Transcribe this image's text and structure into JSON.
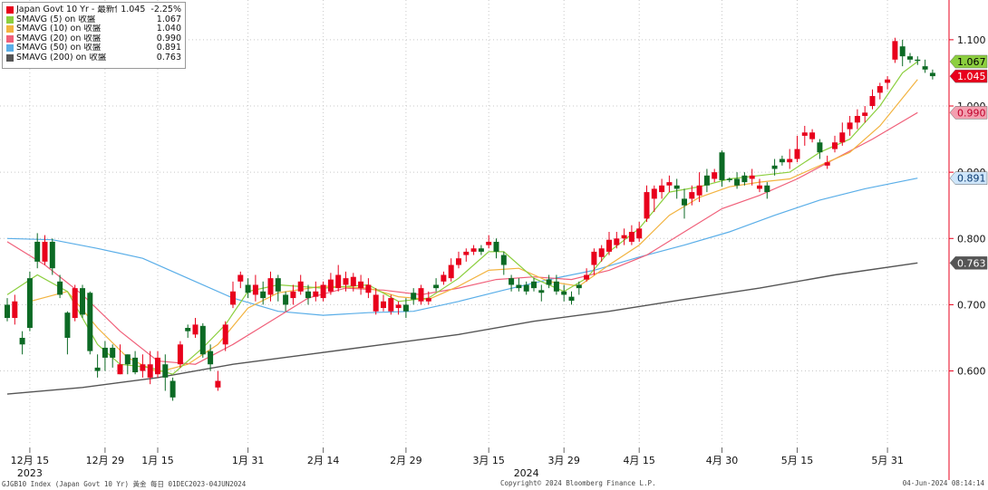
{
  "chart_data": {
    "type": "candlestick",
    "instrument": "Japan Govt 10 Yr",
    "legend": [
      {
        "label": "Japan Govt 10 Yr - 最新價",
        "value": "1.045",
        "change": "-2.25%",
        "color": "#e8001c"
      },
      {
        "label": "SMAVG (5)  on 收盤",
        "value": "1.067",
        "color": "#8ccf3f"
      },
      {
        "label": "SMAVG (10)  on 收盤",
        "value": "1.040",
        "color": "#f2b340"
      },
      {
        "label": "SMAVG (20)  on 收盤",
        "value": "0.990",
        "color": "#f0607a"
      },
      {
        "label": "SMAVG (50)  on 收盤",
        "value": "0.891",
        "color": "#5aaee8"
      },
      {
        "label": "SMAVG (200)  on 收盤",
        "value": "0.763",
        "color": "#555555"
      }
    ],
    "y_axis": {
      "min": 0.49,
      "max": 1.16,
      "ticks": [
        "0.600",
        "0.700",
        "0.800",
        "0.900",
        "1.000",
        "1.100"
      ],
      "position": "right"
    },
    "x_ticks": [
      {
        "label": "12月 15",
        "i": 3
      },
      {
        "label": "12月 29",
        "i": 13
      },
      {
        "label": "1月 15",
        "i": 20
      },
      {
        "label": "1月 31",
        "i": 32
      },
      {
        "label": "2月 14",
        "i": 42
      },
      {
        "label": "2月 29",
        "i": 53
      },
      {
        "label": "3月 15",
        "i": 64
      },
      {
        "label": "3月 29",
        "i": 74
      },
      {
        "label": "4月 15",
        "i": 84
      },
      {
        "label": "4月 30",
        "i": 95
      },
      {
        "label": "5月 15",
        "i": 105
      },
      {
        "label": "5月 31",
        "i": 117
      }
    ],
    "year_labels": [
      {
        "label": "2023",
        "i": 3
      },
      {
        "label": "2024",
        "i": 69
      }
    ],
    "candles": [
      [
        0.7,
        0.68,
        0.71,
        0.675
      ],
      [
        0.68,
        0.705,
        0.715,
        0.67
      ],
      [
        0.65,
        0.64,
        0.66,
        0.625
      ],
      [
        0.74,
        0.665,
        0.75,
        0.66
      ],
      [
        0.795,
        0.765,
        0.808,
        0.755
      ],
      [
        0.765,
        0.795,
        0.805,
        0.76
      ],
      [
        0.795,
        0.755,
        0.8,
        0.745
      ],
      [
        0.735,
        0.715,
        0.745,
        0.71
      ],
      [
        0.688,
        0.65,
        0.69,
        0.625
      ],
      [
        0.68,
        0.725,
        0.73,
        0.675
      ],
      [
        0.725,
        0.685,
        0.73,
        0.68
      ],
      [
        0.718,
        0.63,
        0.72,
        0.625
      ],
      [
        0.605,
        0.6,
        0.625,
        0.59
      ],
      [
        0.635,
        0.62,
        0.645,
        0.6
      ],
      [
        0.635,
        0.62,
        0.64,
        0.605
      ],
      [
        0.595,
        0.61,
        0.64,
        0.595
      ],
      [
        0.625,
        0.61,
        0.625,
        0.595
      ],
      [
        0.62,
        0.598,
        0.63,
        0.595
      ],
      [
        0.6,
        0.61,
        0.625,
        0.59
      ],
      [
        0.59,
        0.61,
        0.63,
        0.58
      ],
      [
        0.595,
        0.62,
        0.63,
        0.59
      ],
      [
        0.61,
        0.59,
        0.625,
        0.57
      ],
      [
        0.585,
        0.56,
        0.59,
        0.555
      ],
      [
        0.61,
        0.64,
        0.645,
        0.605
      ],
      [
        0.665,
        0.66,
        0.67,
        0.65
      ],
      [
        0.655,
        0.67,
        0.68,
        0.65
      ],
      [
        0.668,
        0.625,
        0.672,
        0.62
      ],
      [
        0.63,
        0.61,
        0.64,
        0.6
      ],
      [
        0.575,
        0.585,
        0.6,
        0.57
      ],
      [
        0.64,
        0.67,
        0.675,
        0.63
      ],
      [
        0.7,
        0.72,
        0.735,
        0.695
      ],
      [
        0.735,
        0.745,
        0.75,
        0.725
      ],
      [
        0.73,
        0.718,
        0.74,
        0.71
      ],
      [
        0.715,
        0.73,
        0.745,
        0.705
      ],
      [
        0.72,
        0.71,
        0.735,
        0.7
      ],
      [
        0.715,
        0.74,
        0.75,
        0.705
      ],
      [
        0.74,
        0.72,
        0.745,
        0.705
      ],
      [
        0.715,
        0.7,
        0.72,
        0.69
      ],
      [
        0.71,
        0.72,
        0.73,
        0.7
      ],
      [
        0.72,
        0.735,
        0.745,
        0.715
      ],
      [
        0.72,
        0.71,
        0.73,
        0.7
      ],
      [
        0.712,
        0.72,
        0.735,
        0.705
      ],
      [
        0.71,
        0.73,
        0.735,
        0.705
      ],
      [
        0.72,
        0.738,
        0.748,
        0.715
      ],
      [
        0.725,
        0.745,
        0.76,
        0.72
      ],
      [
        0.73,
        0.74,
        0.75,
        0.72
      ],
      [
        0.728,
        0.742,
        0.748,
        0.72
      ],
      [
        0.725,
        0.735,
        0.745,
        0.715
      ],
      [
        0.718,
        0.73,
        0.74,
        0.71
      ],
      [
        0.69,
        0.715,
        0.725,
        0.685
      ],
      [
        0.695,
        0.705,
        0.715,
        0.69
      ],
      [
        0.69,
        0.71,
        0.715,
        0.685
      ],
      [
        0.695,
        0.7,
        0.705,
        0.685
      ],
      [
        0.7,
        0.69,
        0.71,
        0.68
      ],
      [
        0.718,
        0.708,
        0.725,
        0.7
      ],
      [
        0.705,
        0.725,
        0.73,
        0.7
      ],
      [
        0.705,
        0.71,
        0.72,
        0.7
      ],
      [
        0.73,
        0.725,
        0.74,
        0.72
      ],
      [
        0.735,
        0.745,
        0.75,
        0.73
      ],
      [
        0.74,
        0.76,
        0.77,
        0.735
      ],
      [
        0.76,
        0.77,
        0.78,
        0.755
      ],
      [
        0.775,
        0.78,
        0.785,
        0.765
      ],
      [
        0.78,
        0.785,
        0.79,
        0.775
      ],
      [
        0.785,
        0.78,
        0.79,
        0.775
      ],
      [
        0.79,
        0.795,
        0.805,
        0.785
      ],
      [
        0.795,
        0.78,
        0.8,
        0.77
      ],
      [
        0.775,
        0.76,
        0.78,
        0.745
      ],
      [
        0.74,
        0.73,
        0.745,
        0.72
      ],
      [
        0.73,
        0.725,
        0.74,
        0.72
      ],
      [
        0.73,
        0.72,
        0.735,
        0.715
      ],
      [
        0.735,
        0.725,
        0.74,
        0.72
      ],
      [
        0.722,
        0.718,
        0.73,
        0.705
      ],
      [
        0.738,
        0.73,
        0.745,
        0.725
      ],
      [
        0.735,
        0.72,
        0.745,
        0.715
      ],
      [
        0.72,
        0.715,
        0.73,
        0.705
      ],
      [
        0.712,
        0.706,
        0.72,
        0.7
      ],
      [
        0.73,
        0.725,
        0.735,
        0.715
      ],
      [
        0.738,
        0.745,
        0.755,
        0.735
      ],
      [
        0.76,
        0.78,
        0.785,
        0.745
      ],
      [
        0.772,
        0.785,
        0.79,
        0.765
      ],
      [
        0.78,
        0.798,
        0.81,
        0.775
      ],
      [
        0.79,
        0.8,
        0.81,
        0.785
      ],
      [
        0.8,
        0.805,
        0.815,
        0.79
      ],
      [
        0.795,
        0.81,
        0.82,
        0.79
      ],
      [
        0.8,
        0.815,
        0.825,
        0.795
      ],
      [
        0.83,
        0.87,
        0.88,
        0.825
      ],
      [
        0.86,
        0.875,
        0.88,
        0.84
      ],
      [
        0.87,
        0.88,
        0.89,
        0.86
      ],
      [
        0.88,
        0.885,
        0.895,
        0.87
      ],
      [
        0.88,
        0.875,
        0.89,
        0.86
      ],
      [
        0.86,
        0.85,
        0.875,
        0.83
      ],
      [
        0.86,
        0.87,
        0.88,
        0.85
      ],
      [
        0.865,
        0.88,
        0.9,
        0.855
      ],
      [
        0.895,
        0.88,
        0.905,
        0.87
      ],
      [
        0.89,
        0.9,
        0.905,
        0.885
      ],
      [
        0.93,
        0.888,
        0.933,
        0.878
      ],
      [
        0.89,
        0.888,
        0.892,
        0.885
      ],
      [
        0.89,
        0.88,
        0.9,
        0.875
      ],
      [
        0.895,
        0.885,
        0.9,
        0.88
      ],
      [
        0.89,
        0.895,
        0.905,
        0.88
      ],
      [
        0.875,
        0.88,
        0.89,
        0.87
      ],
      [
        0.88,
        0.87,
        0.885,
        0.86
      ],
      [
        0.91,
        0.905,
        0.92,
        0.895
      ],
      [
        0.92,
        0.915,
        0.925,
        0.91
      ],
      [
        0.915,
        0.92,
        0.935,
        0.905
      ],
      [
        0.92,
        0.935,
        0.955,
        0.915
      ],
      [
        0.955,
        0.96,
        0.97,
        0.94
      ],
      [
        0.95,
        0.96,
        0.965,
        0.945
      ],
      [
        0.945,
        0.93,
        0.95,
        0.92
      ],
      [
        0.91,
        0.915,
        0.925,
        0.905
      ],
      [
        0.935,
        0.945,
        0.955,
        0.93
      ],
      [
        0.945,
        0.96,
        0.975,
        0.94
      ],
      [
        0.965,
        0.975,
        0.985,
        0.955
      ],
      [
        0.975,
        0.985,
        0.995,
        0.965
      ],
      [
        0.985,
        0.99,
        1.0,
        0.975
      ],
      [
        1.0,
        1.015,
        1.025,
        0.995
      ],
      [
        1.02,
        1.03,
        1.035,
        1.01
      ],
      [
        1.035,
        1.04,
        1.045,
        1.025
      ],
      [
        1.07,
        1.098,
        1.103,
        1.065
      ],
      [
        1.09,
        1.075,
        1.1,
        1.06
      ],
      [
        1.075,
        1.07,
        1.08,
        1.065
      ],
      [
        1.07,
        1.068,
        1.075,
        1.062
      ],
      [
        1.06,
        1.055,
        1.07,
        1.05
      ],
      [
        1.05,
        1.045,
        1.055,
        1.04
      ]
    ],
    "sma": {
      "s5": [
        [
          0,
          0.715
        ],
        [
          4,
          0.745
        ],
        [
          8,
          0.72
        ],
        [
          12,
          0.64
        ],
        [
          15,
          0.61
        ],
        [
          19,
          0.605
        ],
        [
          22,
          0.595
        ],
        [
          26,
          0.635
        ],
        [
          29,
          0.67
        ],
        [
          32,
          0.72
        ],
        [
          36,
          0.73
        ],
        [
          42,
          0.725
        ],
        [
          48,
          0.73
        ],
        [
          52,
          0.705
        ],
        [
          56,
          0.71
        ],
        [
          60,
          0.74
        ],
        [
          64,
          0.78
        ],
        [
          66,
          0.78
        ],
        [
          70,
          0.74
        ],
        [
          74,
          0.72
        ],
        [
          77,
          0.74
        ],
        [
          80,
          0.78
        ],
        [
          84,
          0.815
        ],
        [
          88,
          0.87
        ],
        [
          92,
          0.878
        ],
        [
          96,
          0.89
        ],
        [
          100,
          0.895
        ],
        [
          104,
          0.9
        ],
        [
          108,
          0.93
        ],
        [
          112,
          0.95
        ],
        [
          116,
          1.0
        ],
        [
          119,
          1.05
        ],
        [
          121,
          1.067
        ]
      ],
      "s10": [
        [
          3,
          0.705
        ],
        [
          8,
          0.72
        ],
        [
          12,
          0.665
        ],
        [
          16,
          0.62
        ],
        [
          20,
          0.598
        ],
        [
          24,
          0.61
        ],
        [
          28,
          0.64
        ],
        [
          32,
          0.695
        ],
        [
          36,
          0.718
        ],
        [
          42,
          0.728
        ],
        [
          48,
          0.725
        ],
        [
          52,
          0.712
        ],
        [
          56,
          0.708
        ],
        [
          60,
          0.728
        ],
        [
          64,
          0.752
        ],
        [
          68,
          0.755
        ],
        [
          72,
          0.735
        ],
        [
          76,
          0.728
        ],
        [
          80,
          0.76
        ],
        [
          84,
          0.79
        ],
        [
          88,
          0.835
        ],
        [
          92,
          0.862
        ],
        [
          96,
          0.878
        ],
        [
          100,
          0.885
        ],
        [
          104,
          0.89
        ],
        [
          108,
          0.91
        ],
        [
          112,
          0.93
        ],
        [
          116,
          0.97
        ],
        [
          121,
          1.04
        ]
      ],
      "s20": [
        [
          0,
          0.795
        ],
        [
          5,
          0.76
        ],
        [
          10,
          0.715
        ],
        [
          15,
          0.66
        ],
        [
          20,
          0.615
        ],
        [
          25,
          0.61
        ],
        [
          30,
          0.64
        ],
        [
          35,
          0.675
        ],
        [
          40,
          0.71
        ],
        [
          45,
          0.725
        ],
        [
          50,
          0.722
        ],
        [
          55,
          0.715
        ],
        [
          60,
          0.725
        ],
        [
          65,
          0.738
        ],
        [
          70,
          0.742
        ],
        [
          75,
          0.738
        ],
        [
          80,
          0.752
        ],
        [
          85,
          0.775
        ],
        [
          90,
          0.81
        ],
        [
          95,
          0.845
        ],
        [
          100,
          0.865
        ],
        [
          105,
          0.89
        ],
        [
          110,
          0.92
        ],
        [
          115,
          0.95
        ],
        [
          121,
          0.99
        ]
      ],
      "s50": [
        [
          0,
          0.8
        ],
        [
          6,
          0.798
        ],
        [
          12,
          0.785
        ],
        [
          18,
          0.77
        ],
        [
          24,
          0.74
        ],
        [
          30,
          0.71
        ],
        [
          36,
          0.69
        ],
        [
          42,
          0.684
        ],
        [
          48,
          0.688
        ],
        [
          54,
          0.69
        ],
        [
          60,
          0.705
        ],
        [
          66,
          0.722
        ],
        [
          72,
          0.738
        ],
        [
          78,
          0.752
        ],
        [
          84,
          0.772
        ],
        [
          90,
          0.79
        ],
        [
          96,
          0.81
        ],
        [
          102,
          0.835
        ],
        [
          108,
          0.858
        ],
        [
          114,
          0.875
        ],
        [
          121,
          0.891
        ]
      ],
      "s200": [
        [
          0,
          0.565
        ],
        [
          10,
          0.575
        ],
        [
          20,
          0.59
        ],
        [
          30,
          0.61
        ],
        [
          40,
          0.625
        ],
        [
          50,
          0.64
        ],
        [
          60,
          0.655
        ],
        [
          70,
          0.675
        ],
        [
          80,
          0.69
        ],
        [
          90,
          0.708
        ],
        [
          100,
          0.725
        ],
        [
          110,
          0.745
        ],
        [
          121,
          0.763
        ]
      ]
    },
    "price_labels": [
      {
        "text": "1.067",
        "value": 1.067,
        "bg": "#8ccf3f",
        "fg": "#000000"
      },
      {
        "text": "1.045",
        "value": 1.045,
        "bg": "#e8001c",
        "fg": "#ffffff"
      },
      {
        "text": "0.990",
        "value": 0.99,
        "bg": "#f3a0b0",
        "fg": "#c0002a"
      },
      {
        "text": "0.891",
        "value": 0.891,
        "bg": "#cfe6fa",
        "fg": "#0a3a70"
      },
      {
        "text": "0.763",
        "value": 0.763,
        "bg": "#555555",
        "fg": "#ffffff"
      }
    ],
    "colors": {
      "up": "#e8001c",
      "down": "#0c6a24",
      "grid": "#c8c8c8",
      "axis_line": "#e8001c"
    }
  },
  "footer": {
    "left": "GJGB10 Index (Japan Govt 10 Yr) 黃金  每日 01DEC2023-04JUN2024",
    "center": "Copyright© 2024 Bloomberg Finance L.P.",
    "right": "04-Jun-2024 08:14:14"
  }
}
